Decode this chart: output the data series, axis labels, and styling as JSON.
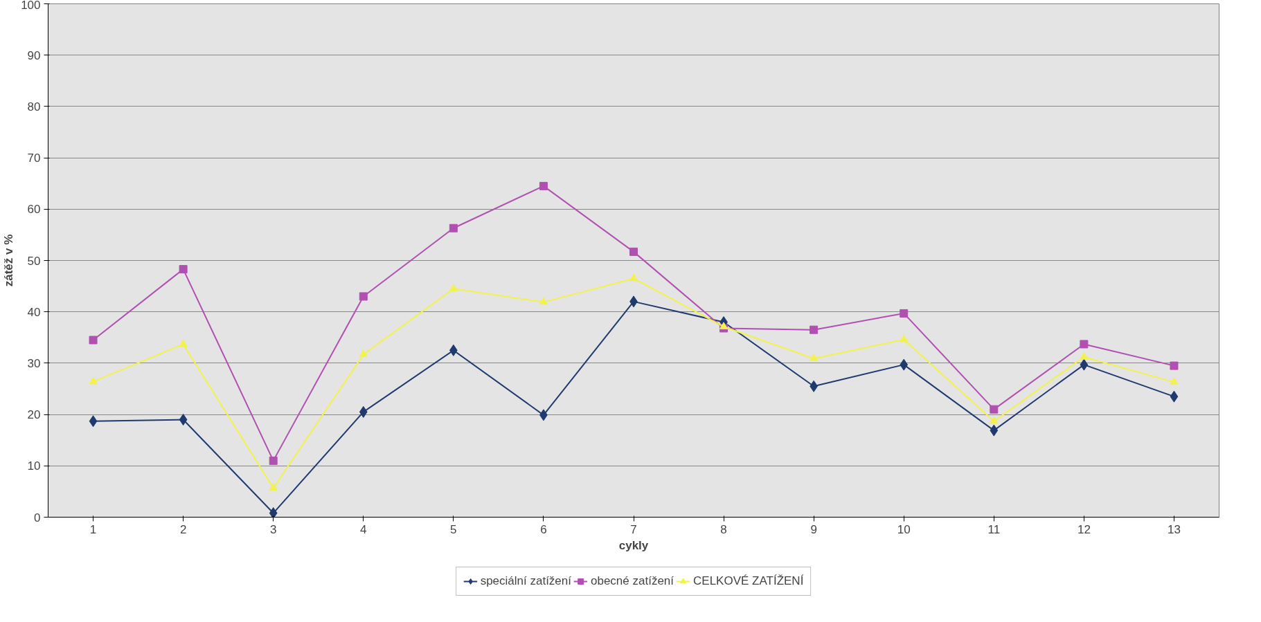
{
  "chart_data": {
    "type": "line",
    "xlabel": "cykly",
    "ylabel": "zátěž v %",
    "categories": [
      "1",
      "2",
      "3",
      "4",
      "5",
      "6",
      "7",
      "8",
      "9",
      "10",
      "11",
      "12",
      "13"
    ],
    "series": [
      {
        "name": "speciální zatížení",
        "color": "#1f3a6e",
        "marker": "diamond",
        "values": [
          18.7,
          19.0,
          0.8,
          20.5,
          32.5,
          19.9,
          42,
          38,
          25.5,
          29.7,
          16.9,
          29.7,
          23.5
        ]
      },
      {
        "name": "obecné zatížení",
        "color": "#b050b0",
        "marker": "square",
        "values": [
          34.5,
          48.3,
          11,
          43,
          56.3,
          64.5,
          51.7,
          36.8,
          36.5,
          39.7,
          21,
          33.7,
          29.5
        ]
      },
      {
        "name": "CELKOVÉ ZATÍŽENÍ",
        "color": "#f2f24a",
        "marker": "triangle",
        "values": [
          26.4,
          33.7,
          5.7,
          31.7,
          44.5,
          41.9,
          46.5,
          37.1,
          30.9,
          34.6,
          18.7,
          31.2,
          26.3
        ]
      }
    ],
    "ylim": [
      0,
      100
    ],
    "yticks": [
      0,
      10,
      20,
      30,
      40,
      50,
      60,
      70,
      80,
      90,
      100
    ],
    "grid": "y",
    "legend": "bottom",
    "line_style": "solid"
  }
}
